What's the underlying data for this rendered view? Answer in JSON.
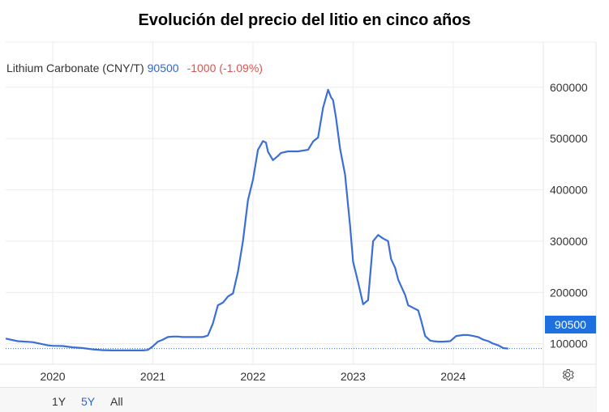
{
  "title": "Evolución del precio del litio en cinco años",
  "quote": {
    "instrument": "Lithium Carbonate (CNY/T)",
    "price": "90500",
    "change": "-1000 (-1.09%)"
  },
  "price_tag": "90500",
  "range_buttons": [
    {
      "label": "1Y",
      "active": false
    },
    {
      "label": "5Y",
      "active": true
    },
    {
      "label": "All",
      "active": false
    }
  ],
  "colors": {
    "line": "#3b6fd6",
    "price_tag": "#1e6fe0",
    "price_text": "#3366cc",
    "change_text": "#d9534f"
  },
  "icons": {
    "settings": "gear-icon"
  },
  "chart_data": {
    "type": "line",
    "title": "Evolución del precio del litio en cinco años",
    "xlabel": "",
    "ylabel": "",
    "series": [
      {
        "name": "Lithium Carbonate (CNY/T)",
        "x": [
          2019.53,
          2019.65,
          2019.8,
          2019.95,
          2020.0,
          2020.1,
          2020.2,
          2020.3,
          2020.4,
          2020.5,
          2020.6,
          2020.7,
          2020.8,
          2020.9,
          2020.95,
          2021.0,
          2021.05,
          2021.1,
          2021.15,
          2021.2,
          2021.25,
          2021.3,
          2021.4,
          2021.5,
          2021.55,
          2021.6,
          2021.65,
          2021.7,
          2021.75,
          2021.8,
          2021.85,
          2021.9,
          2021.95,
          2022.0,
          2022.05,
          2022.1,
          2022.13,
          2022.15,
          2022.2,
          2022.25,
          2022.28,
          2022.35,
          2022.45,
          2022.55,
          2022.6,
          2022.65,
          2022.7,
          2022.75,
          2022.78,
          2022.8,
          2022.83,
          2022.87,
          2022.92,
          2022.97,
          2023.0,
          2023.05,
          2023.1,
          2023.15,
          2023.2,
          2023.25,
          2023.3,
          2023.35,
          2023.38,
          2023.42,
          2023.45,
          2023.52,
          2023.55,
          2023.6,
          2023.65,
          2023.68,
          2023.72,
          2023.77,
          2023.8,
          2023.85,
          2023.9,
          2023.97,
          2024.03,
          2024.1,
          2024.15,
          2024.2,
          2024.25,
          2024.3,
          2024.35,
          2024.4,
          2024.45,
          2024.5,
          2024.55
        ],
        "values": [
          110000,
          105000,
          103000,
          97000,
          96000,
          95500,
          93000,
          91500,
          89000,
          87500,
          87000,
          87000,
          87000,
          87000,
          88000,
          95000,
          104000,
          108000,
          113000,
          114000,
          114000,
          113000,
          113000,
          113000,
          116000,
          140000,
          175000,
          180000,
          192000,
          198000,
          240000,
          300000,
          380000,
          420000,
          478000,
          495000,
          492000,
          474000,
          458000,
          466000,
          472000,
          475000,
          475000,
          478000,
          494000,
          502000,
          560000,
          595000,
          580000,
          575000,
          540000,
          480000,
          430000,
          330000,
          260000,
          220000,
          177000,
          185000,
          300000,
          312000,
          305000,
          300000,
          265000,
          248000,
          225000,
          195000,
          175000,
          170000,
          165000,
          145000,
          115000,
          106000,
          105000,
          104000,
          104000,
          105000,
          115000,
          117000,
          117000,
          115000,
          113000,
          108000,
          105000,
          100000,
          97000,
          91500,
          90500
        ]
      }
    ],
    "x_ticks": [
      "2020",
      "2021",
      "2022",
      "2023",
      "2024"
    ],
    "x_tick_values": [
      2020,
      2021,
      2022,
      2023,
      2024
    ],
    "y_ticks": [
      "100000",
      "200000",
      "300000",
      "400000",
      "500000",
      "600000"
    ],
    "y_tick_values": [
      100000,
      200000,
      300000,
      400000,
      500000,
      600000
    ],
    "xlim": [
      2019.53,
      2024.9
    ],
    "ylim": [
      60000,
      688000
    ],
    "last_value": 90500,
    "grid": true,
    "legend": "top-left"
  }
}
